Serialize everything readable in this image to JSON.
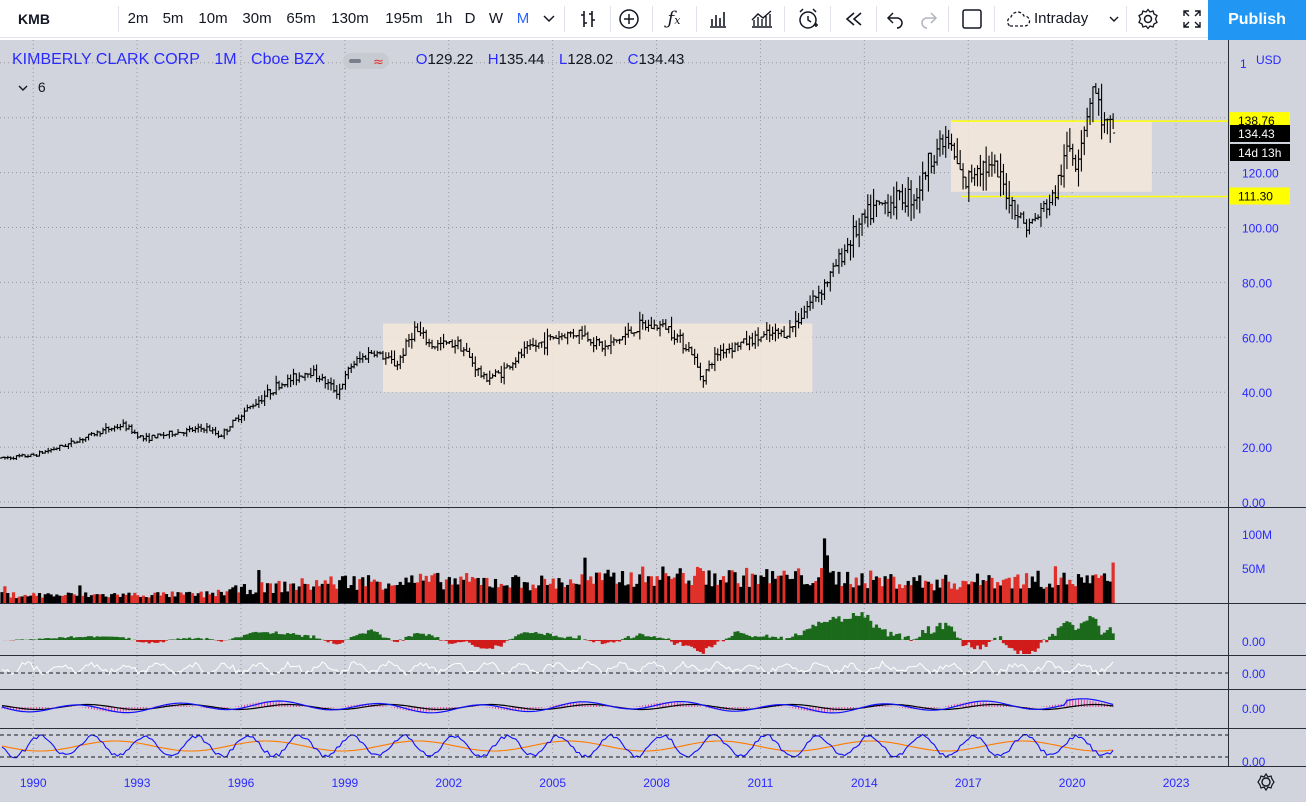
{
  "symbol": "KMB",
  "toolbar": {
    "intervals": [
      "2m",
      "5m",
      "10m",
      "30m",
      "65m",
      "130m",
      "195m",
      "1h",
      "D",
      "W",
      "M"
    ],
    "active_interval": "M",
    "session": "Intraday",
    "publish_label": "Publish"
  },
  "legend": {
    "name": "KIMBERLY CLARK CORP",
    "interval": "1M",
    "exchange": "Cboe BZX",
    "open_label": "O",
    "open": "129.22",
    "high_label": "H",
    "high": "135.44",
    "low_label": "L",
    "low": "128.02",
    "close_label": "C",
    "close": "134.43",
    "indicator_count": "6"
  },
  "price_axis": {
    "currency": "USD",
    "ticks": [
      "0.00",
      "20.00",
      "40.00",
      "60.00",
      "80.00",
      "100.00",
      "120.00"
    ],
    "partial_tick": "1",
    "labels": {
      "range_top": "138.76",
      "last_price": "134.43",
      "countdown": "14d 13h",
      "range_bottom": "111.30"
    }
  },
  "volume_axis": {
    "ticks": [
      "100M",
      "50M"
    ]
  },
  "indicator_axes": [
    "0.00",
    "0.00",
    "0.00",
    "0.00"
  ],
  "time_axis": [
    "1990",
    "1993",
    "1996",
    "1999",
    "2002",
    "2005",
    "2008",
    "2011",
    "2014",
    "2017",
    "2020",
    "2023"
  ],
  "colors": {
    "background": "#d1d4dc",
    "accent": "#2962ff",
    "volume_up": "#000000",
    "volume_down": "#e0302a",
    "hist_pos": "#1b6a1b",
    "hist_neg": "#d11b1b",
    "range_fill": "#f6e7da",
    "range_line": "#ffff00",
    "macd_line": "#1010ff",
    "signal_line": "#ff7a00"
  },
  "chart_data": {
    "type": "ohlc",
    "title": "KIMBERLY CLARK CORP",
    "interval": "1M",
    "x_unit": "year",
    "ylim": [
      0,
      160
    ],
    "price_path": [
      [
        1989.1,
        16
      ],
      [
        1990.0,
        17
      ],
      [
        1991.0,
        21
      ],
      [
        1992.0,
        26
      ],
      [
        1992.6,
        28
      ],
      [
        1993.2,
        23
      ],
      [
        1994.0,
        25
      ],
      [
        1995.0,
        27
      ],
      [
        1995.4,
        24
      ],
      [
        1996.0,
        32
      ],
      [
        1996.5,
        37
      ],
      [
        1997.0,
        42
      ],
      [
        1998.0,
        48
      ],
      [
        1998.8,
        40
      ],
      [
        1999.2,
        50
      ],
      [
        1999.8,
        55
      ],
      [
        2000.5,
        50
      ],
      [
        2001.0,
        63
      ],
      [
        2001.5,
        57
      ],
      [
        2002.3,
        58
      ],
      [
        2003.0,
        45
      ],
      [
        2003.5,
        47
      ],
      [
        2004.2,
        55
      ],
      [
        2005.0,
        60
      ],
      [
        2005.8,
        62
      ],
      [
        2006.5,
        56
      ],
      [
        2007.5,
        64
      ],
      [
        2008.3,
        64
      ],
      [
        2009.0,
        55
      ],
      [
        2009.3,
        45
      ],
      [
        2009.8,
        55
      ],
      [
        2010.5,
        58
      ],
      [
        2011.0,
        60
      ],
      [
        2011.8,
        62
      ],
      [
        2012.4,
        72
      ],
      [
        2013.0,
        82
      ],
      [
        2013.6,
        96
      ],
      [
        2014.2,
        106
      ],
      [
        2014.8,
        110
      ],
      [
        2015.5,
        112
      ],
      [
        2016.0,
        128
      ],
      [
        2016.4,
        132
      ],
      [
        2016.9,
        115
      ],
      [
        2017.3,
        124
      ],
      [
        2017.8,
        120
      ],
      [
        2018.3,
        108
      ],
      [
        2018.7,
        100
      ],
      [
        2019.0,
        104
      ],
      [
        2019.5,
        112
      ],
      [
        2019.9,
        130
      ],
      [
        2020.1,
        124
      ],
      [
        2020.4,
        140
      ],
      [
        2020.6,
        152
      ],
      [
        2020.9,
        138
      ],
      [
        2021.2,
        134
      ]
    ],
    "volume_base_millions": [
      [
        1989.1,
        13
      ],
      [
        1992.0,
        13
      ],
      [
        1995.0,
        14
      ],
      [
        1996.0,
        22
      ],
      [
        1999.0,
        35
      ],
      [
        2002.0,
        36
      ],
      [
        2005.0,
        33
      ],
      [
        2008.0,
        45
      ],
      [
        2010.0,
        42
      ],
      [
        2013.0,
        42
      ],
      [
        2016.0,
        33
      ],
      [
        2019.0,
        38
      ],
      [
        2021.2,
        36
      ]
    ],
    "range_boxes": [
      {
        "x_start": 2000.1,
        "x_end": 2012.5,
        "y_low": 40,
        "y_high": 65
      },
      {
        "x_start": 2016.5,
        "x_end": 2022.3,
        "y_low": 113,
        "y_high": 139
      }
    ],
    "range_lines": [
      {
        "label": "138.76",
        "x_start": 2016.5,
        "y": 138.76
      },
      {
        "label": "111.30",
        "x_start": 2016.8,
        "y": 111.3
      }
    ],
    "last_close": 134.43
  }
}
